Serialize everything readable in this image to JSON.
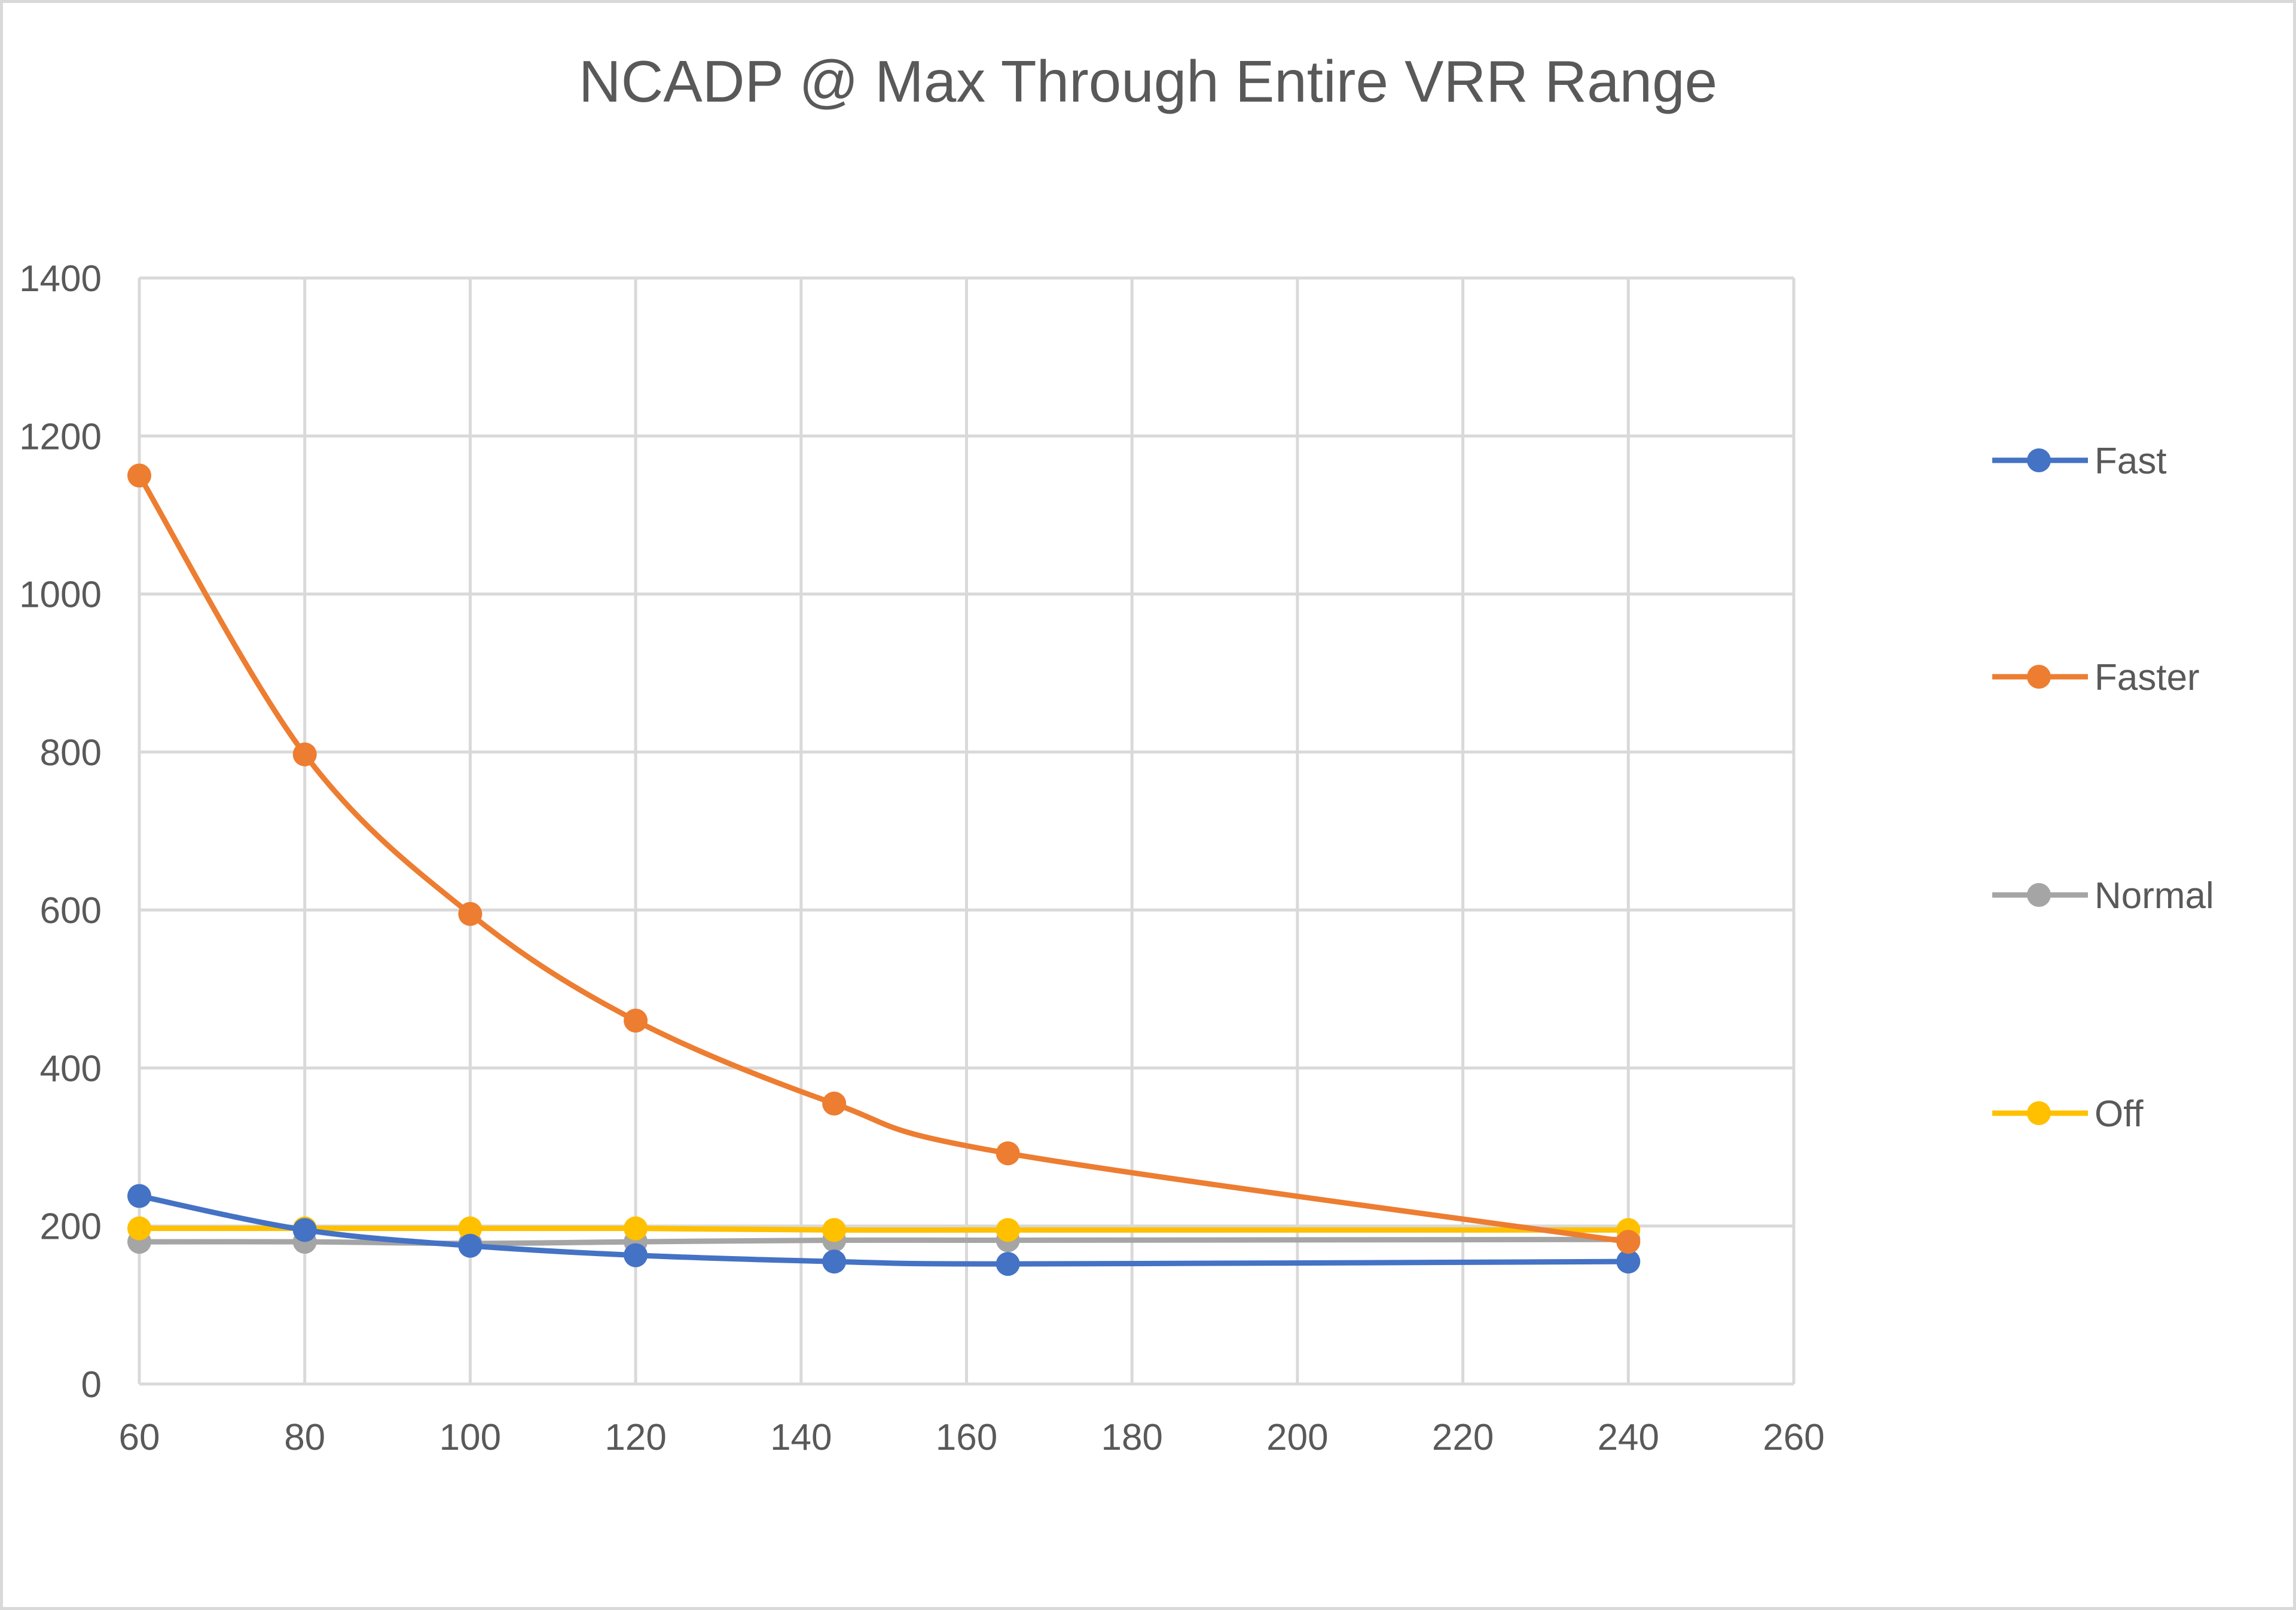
{
  "chart_data": {
    "type": "line",
    "title": "NCADP @ Max Through Entire VRR Range",
    "xlabel": "",
    "ylabel": "",
    "xlim": [
      60,
      260
    ],
    "ylim": [
      0,
      1400
    ],
    "x_ticks": [
      "60",
      "80",
      "100",
      "120",
      "140",
      "160",
      "180",
      "200",
      "220",
      "240",
      "260"
    ],
    "y_ticks": [
      "0",
      "200",
      "400",
      "600",
      "800",
      "1000",
      "1200",
      "1400"
    ],
    "grid": true,
    "legend_position": "right",
    "smooth": true,
    "series": [
      {
        "name": "Fast",
        "color": "#4472c4",
        "x": [
          60,
          80,
          100,
          120,
          144,
          165,
          240
        ],
        "values": [
          238,
          195,
          175,
          163,
          155,
          152,
          155
        ]
      },
      {
        "name": "Faster",
        "color": "#ed7d31",
        "x": [
          60,
          80,
          100,
          120,
          144,
          165,
          240
        ],
        "values": [
          1150,
          797,
          595,
          460,
          355,
          292,
          180
        ]
      },
      {
        "name": "Normal",
        "color": "#a5a5a5",
        "x": [
          60,
          80,
          100,
          120,
          144,
          165,
          240
        ],
        "values": [
          180,
          180,
          178,
          180,
          182,
          182,
          183
        ]
      },
      {
        "name": "Off",
        "color": "#ffc000",
        "x": [
          60,
          80,
          100,
          120,
          144,
          165,
          240
        ],
        "values": [
          197,
          197,
          197,
          197,
          195,
          195,
          195
        ]
      }
    ]
  }
}
